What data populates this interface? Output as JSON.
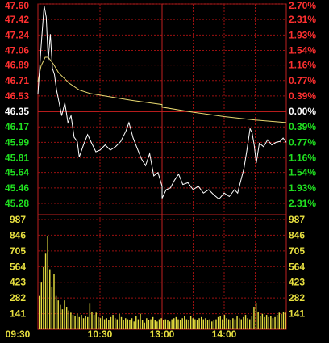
{
  "chart_data": [
    {
      "type": "line",
      "name": "intraday-price",
      "ylim": [
        45.28,
        47.6
      ],
      "prev_close": 46.35,
      "y_ticks": [
        {
          "price": "47.60",
          "pct": "2.70%",
          "side": "up"
        },
        {
          "price": "47.42",
          "pct": "2.31%",
          "side": "up"
        },
        {
          "price": "47.24",
          "pct": "1.93%",
          "side": "up"
        },
        {
          "price": "47.06",
          "pct": "1.54%",
          "side": "up"
        },
        {
          "price": "46.89",
          "pct": "1.16%",
          "side": "up"
        },
        {
          "price": "46.71",
          "pct": "0.77%",
          "side": "up"
        },
        {
          "price": "46.53",
          "pct": "0.39%",
          "side": "up"
        },
        {
          "price": "46.35",
          "pct": "0.00%",
          "side": "flat"
        },
        {
          "price": "46.17",
          "pct": "0.39%",
          "side": "down"
        },
        {
          "price": "45.99",
          "pct": "0.77%",
          "side": "down"
        },
        {
          "price": "45.81",
          "pct": "1.16%",
          "side": "down"
        },
        {
          "price": "45.64",
          "pct": "1.54%",
          "side": "down"
        },
        {
          "price": "45.46",
          "pct": "1.93%",
          "side": "down"
        },
        {
          "price": "45.28",
          "pct": "2.31%",
          "side": "down"
        }
      ],
      "time_axis": {
        "start": "09:30",
        "end": "15:00",
        "lunch_break": [
          "11:30",
          "13:00"
        ]
      },
      "x_ticks": [
        "09:30",
        "10:30",
        "13:00",
        "14:00"
      ],
      "price_series": [
        {
          "t": "09:30",
          "v": 46.55
        },
        {
          "t": "09:33",
          "v": 47.1
        },
        {
          "t": "09:36",
          "v": 47.58
        },
        {
          "t": "09:38",
          "v": 47.45
        },
        {
          "t": "09:40",
          "v": 46.95
        },
        {
          "t": "09:42",
          "v": 47.25
        },
        {
          "t": "09:44",
          "v": 46.85
        },
        {
          "t": "09:46",
          "v": 46.78
        },
        {
          "t": "09:48",
          "v": 46.6
        },
        {
          "t": "09:50",
          "v": 46.48
        },
        {
          "t": "09:53",
          "v": 46.3
        },
        {
          "t": "09:56",
          "v": 46.45
        },
        {
          "t": "09:59",
          "v": 46.22
        },
        {
          "t": "10:02",
          "v": 46.3
        },
        {
          "t": "10:05",
          "v": 46.05
        },
        {
          "t": "10:08",
          "v": 46.0
        },
        {
          "t": "10:10",
          "v": 45.82
        },
        {
          "t": "10:14",
          "v": 45.96
        },
        {
          "t": "10:18",
          "v": 46.08
        },
        {
          "t": "10:22",
          "v": 45.98
        },
        {
          "t": "10:26",
          "v": 45.88
        },
        {
          "t": "10:30",
          "v": 45.9
        },
        {
          "t": "10:35",
          "v": 45.96
        },
        {
          "t": "10:40",
          "v": 45.9
        },
        {
          "t": "10:45",
          "v": 45.94
        },
        {
          "t": "10:50",
          "v": 46.0
        },
        {
          "t": "10:55",
          "v": 46.12
        },
        {
          "t": "10:58",
          "v": 46.22
        },
        {
          "t": "11:02",
          "v": 46.04
        },
        {
          "t": "11:06",
          "v": 45.92
        },
        {
          "t": "11:10",
          "v": 45.8
        },
        {
          "t": "11:14",
          "v": 45.72
        },
        {
          "t": "11:18",
          "v": 45.86
        },
        {
          "t": "11:22",
          "v": 45.6
        },
        {
          "t": "11:26",
          "v": 45.64
        },
        {
          "t": "11:30",
          "v": 45.48
        },
        {
          "t": "13:00",
          "v": 45.34
        },
        {
          "t": "13:04",
          "v": 45.44
        },
        {
          "t": "13:08",
          "v": 45.46
        },
        {
          "t": "13:12",
          "v": 45.55
        },
        {
          "t": "13:16",
          "v": 45.62
        },
        {
          "t": "13:20",
          "v": 45.5
        },
        {
          "t": "13:25",
          "v": 45.52
        },
        {
          "t": "13:30",
          "v": 45.44
        },
        {
          "t": "13:35",
          "v": 45.48
        },
        {
          "t": "13:40",
          "v": 45.4
        },
        {
          "t": "13:45",
          "v": 45.44
        },
        {
          "t": "13:50",
          "v": 45.38
        },
        {
          "t": "13:55",
          "v": 45.33
        },
        {
          "t": "14:00",
          "v": 45.4
        },
        {
          "t": "14:05",
          "v": 45.36
        },
        {
          "t": "14:10",
          "v": 45.44
        },
        {
          "t": "14:13",
          "v": 45.4
        },
        {
          "t": "14:16",
          "v": 45.54
        },
        {
          "t": "14:19",
          "v": 45.68
        },
        {
          "t": "14:22",
          "v": 45.9
        },
        {
          "t": "14:25",
          "v": 46.15
        },
        {
          "t": "14:27",
          "v": 46.1
        },
        {
          "t": "14:29",
          "v": 45.96
        },
        {
          "t": "14:31",
          "v": 45.75
        },
        {
          "t": "14:34",
          "v": 45.98
        },
        {
          "t": "14:38",
          "v": 45.94
        },
        {
          "t": "14:42",
          "v": 46.02
        },
        {
          "t": "14:46",
          "v": 45.96
        },
        {
          "t": "14:50",
          "v": 45.99
        },
        {
          "t": "14:54",
          "v": 46.0
        },
        {
          "t": "14:57",
          "v": 46.04
        },
        {
          "t": "15:00",
          "v": 45.99
        }
      ],
      "avg_series": [
        {
          "t": "09:30",
          "v": 46.7
        },
        {
          "t": "09:33",
          "v": 46.88
        },
        {
          "t": "09:37",
          "v": 46.98
        },
        {
          "t": "09:40",
          "v": 46.98
        },
        {
          "t": "09:45",
          "v": 46.9
        },
        {
          "t": "09:50",
          "v": 46.8
        },
        {
          "t": "10:00",
          "v": 46.68
        },
        {
          "t": "10:10",
          "v": 46.6
        },
        {
          "t": "10:20",
          "v": 46.56
        },
        {
          "t": "10:30",
          "v": 46.54
        },
        {
          "t": "11:00",
          "v": 46.48
        },
        {
          "t": "11:30",
          "v": 46.43
        },
        {
          "t": "13:00",
          "v": 46.4
        },
        {
          "t": "13:30",
          "v": 46.34
        },
        {
          "t": "14:00",
          "v": 46.29
        },
        {
          "t": "14:30",
          "v": 46.25
        },
        {
          "t": "15:00",
          "v": 46.22
        }
      ],
      "colors": {
        "up": "#ff3030",
        "down": "#20e020",
        "flat": "#ffffff",
        "price_line": "#ffffff",
        "avg_line": "#e8d870",
        "grid": "#9a1010",
        "frame": "#c02020"
      }
    },
    {
      "type": "bar",
      "name": "intraday-volume",
      "ylim": [
        0,
        987
      ],
      "y_ticks": [
        "987",
        "846",
        "705",
        "564",
        "423",
        "282",
        "141"
      ],
      "color": "#e8e040",
      "volumes": [
        300,
        420,
        560,
        680,
        840,
        540,
        380,
        500,
        300,
        260,
        220,
        180,
        260,
        200,
        170,
        150,
        130,
        120,
        140,
        110,
        130,
        100,
        120,
        110,
        230,
        160,
        130,
        150,
        110,
        100,
        120,
        90,
        100,
        80,
        110,
        130,
        100,
        90,
        140,
        110,
        80,
        100,
        90,
        80,
        100,
        70,
        120,
        90,
        140,
        80,
        60,
        100,
        80,
        90,
        110,
        80,
        70,
        90,
        100,
        80,
        90,
        80,
        70,
        90,
        100,
        110,
        90,
        80,
        100,
        120,
        90,
        80,
        120,
        100,
        90,
        80,
        100,
        110,
        90,
        100,
        80,
        90,
        70,
        80,
        90,
        110,
        120,
        90,
        130,
        100,
        90,
        80,
        100,
        90,
        120,
        100,
        90,
        110,
        130,
        100,
        90,
        120,
        200,
        240,
        160,
        120,
        140,
        110,
        130,
        110,
        120,
        100,
        110,
        130,
        150,
        140,
        160,
        150
      ]
    }
  ]
}
